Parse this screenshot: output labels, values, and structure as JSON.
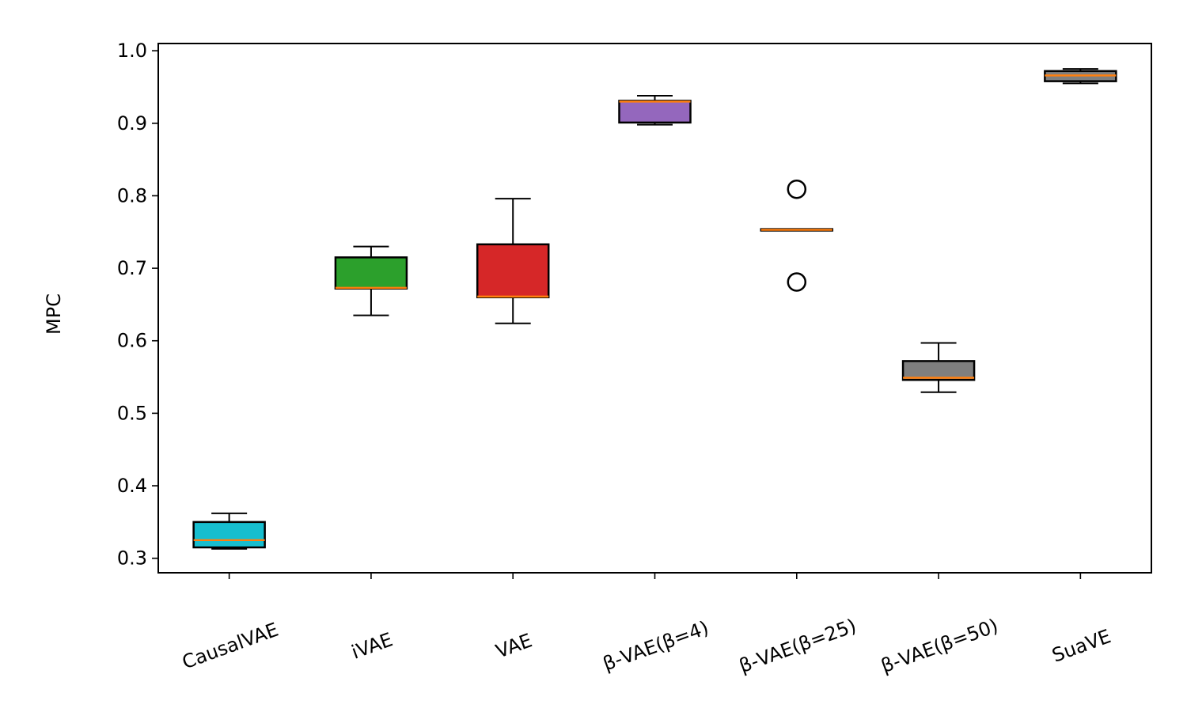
{
  "chart_data": {
    "type": "box",
    "title": "",
    "xlabel": "",
    "ylabel": "MPC",
    "ylim": [
      0.28,
      1.01
    ],
    "yticks": [
      "0.3",
      "0.4",
      "0.5",
      "0.6",
      "0.7",
      "0.8",
      "0.9",
      "1.0"
    ],
    "grid": false,
    "series": [
      {
        "name": "CausalVAE",
        "color": "#17becf",
        "whisker_low": 0.313,
        "q1": 0.315,
        "median": 0.325,
        "q3": 0.35,
        "whisker_high": 0.362,
        "outliers": []
      },
      {
        "name": "iVAE",
        "color": "#2ca02c",
        "whisker_low": 0.635,
        "q1": 0.672,
        "median": 0.673,
        "q3": 0.715,
        "whisker_high": 0.73,
        "outliers": []
      },
      {
        "name": "VAE",
        "color": "#d62728",
        "whisker_low": 0.624,
        "q1": 0.66,
        "median": 0.661,
        "q3": 0.733,
        "whisker_high": 0.796,
        "outliers": []
      },
      {
        "name": "β-VAE(β=4)",
        "color": "#9467bd",
        "whisker_low": 0.898,
        "q1": 0.901,
        "median": 0.93,
        "q3": 0.931,
        "whisker_high": 0.938,
        "outliers": []
      },
      {
        "name": "β-VAE(β=25)",
        "color": "#8c564b",
        "whisker_low": 0.752,
        "q1": 0.752,
        "median": 0.753,
        "q3": 0.754,
        "whisker_high": 0.754,
        "outliers": [
          0.809,
          0.681
        ]
      },
      {
        "name": "β-VAE(β=50)",
        "color": "#7f7f7f",
        "whisker_low": 0.529,
        "q1": 0.546,
        "median": 0.549,
        "q3": 0.572,
        "whisker_high": 0.597,
        "outliers": []
      },
      {
        "name": "SuaVE",
        "color": "#7f7f7f",
        "whisker_low": 0.955,
        "q1": 0.958,
        "median": 0.966,
        "q3": 0.972,
        "whisker_high": 0.975,
        "outliers": []
      }
    ],
    "median_color": "#ff7f0e"
  }
}
